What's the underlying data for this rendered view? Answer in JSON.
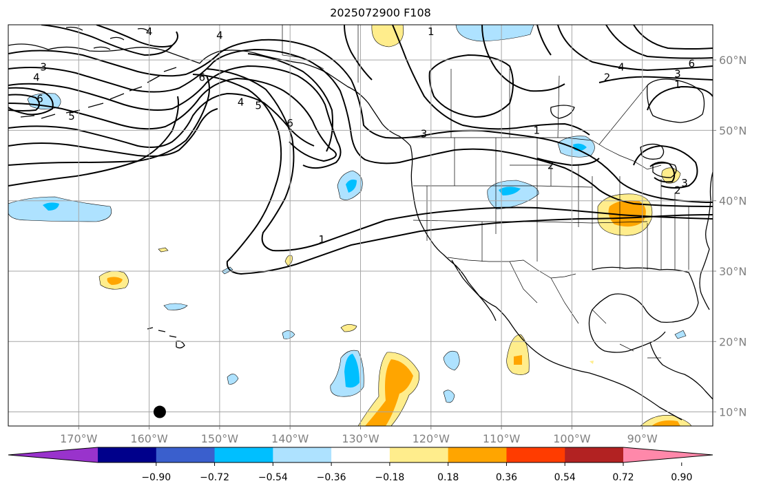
{
  "title": "2025072900 F108",
  "map": {
    "projection": "equirectangular",
    "lon_range": [
      -180,
      -80
    ],
    "lat_range": [
      8,
      65
    ],
    "grid": true,
    "lon_ticks": [
      {
        "lon": -170,
        "label": "170°W"
      },
      {
        "lon": -160,
        "label": "160°W"
      },
      {
        "lon": -150,
        "label": "150°W"
      },
      {
        "lon": -140,
        "label": "140°W"
      },
      {
        "lon": -130,
        "label": "130°W"
      },
      {
        "lon": -120,
        "label": "120°W"
      },
      {
        "lon": -110,
        "label": "110°W"
      },
      {
        "lon": -100,
        "label": "100°W"
      },
      {
        "lon": -90,
        "label": "90°W"
      }
    ],
    "lat_ticks": [
      {
        "lat": 60,
        "label": "60°N"
      },
      {
        "lat": 50,
        "label": "50°N"
      },
      {
        "lat": 40,
        "label": "40°N"
      },
      {
        "lat": 30,
        "label": "30°N"
      },
      {
        "lat": 20,
        "label": "20°N"
      },
      {
        "lat": 10,
        "label": "10°N"
      }
    ],
    "contour_labels": [
      {
        "text": "4",
        "lon": -160,
        "lat": 64
      },
      {
        "text": "4",
        "lon": -150,
        "lat": 63.5
      },
      {
        "text": "3",
        "lon": -175,
        "lat": 59
      },
      {
        "text": "4",
        "lon": -176,
        "lat": 57.5
      },
      {
        "text": "6",
        "lon": -175.5,
        "lat": 54.5
      },
      {
        "text": "5",
        "lon": -171,
        "lat": 52
      },
      {
        "text": "6",
        "lon": -152.5,
        "lat": 57.5
      },
      {
        "text": "4",
        "lon": -147,
        "lat": 54
      },
      {
        "text": "5",
        "lon": -144.5,
        "lat": 53.5
      },
      {
        "text": "6",
        "lon": -140,
        "lat": 51
      },
      {
        "text": "3",
        "lon": -121,
        "lat": 49.5
      },
      {
        "text": "1",
        "lon": -120,
        "lat": 64
      },
      {
        "text": "1",
        "lon": -105,
        "lat": 50
      },
      {
        "text": "2",
        "lon": -103,
        "lat": 45
      },
      {
        "text": "4",
        "lon": -93,
        "lat": 59
      },
      {
        "text": "2",
        "lon": -95,
        "lat": 57.5
      },
      {
        "text": "6",
        "lon": -83,
        "lat": 59.5
      },
      {
        "text": "3",
        "lon": -85,
        "lat": 58
      },
      {
        "text": "1",
        "lon": -85,
        "lat": 56.5
      },
      {
        "text": "3",
        "lon": -84,
        "lat": 42.5
      },
      {
        "text": "2",
        "lon": -85,
        "lat": 41.5
      },
      {
        "text": "1",
        "lon": -135.5,
        "lat": 34.5
      }
    ],
    "marker": {
      "lon": -158.5,
      "lat": 10,
      "color": "#000000"
    }
  },
  "colorbar": {
    "extend": "both",
    "colors": [
      "#9933cc",
      "#00008b",
      "#3a5fcd",
      "#00bfff",
      "#aee2ff",
      "#ffffff",
      "#ffed8c",
      "#ffa500",
      "#ff3c00",
      "#b22222",
      "#ff88aa"
    ],
    "tick_values": [
      -0.9,
      -0.72,
      -0.54,
      -0.36,
      -0.18,
      0.18,
      0.36,
      0.54,
      0.72,
      0.9
    ],
    "tick_labels": [
      "−0.90",
      "−0.72",
      "−0.54",
      "−0.36",
      "−0.18",
      "0.18",
      "0.36",
      "0.54",
      "0.72",
      "0.90"
    ]
  }
}
